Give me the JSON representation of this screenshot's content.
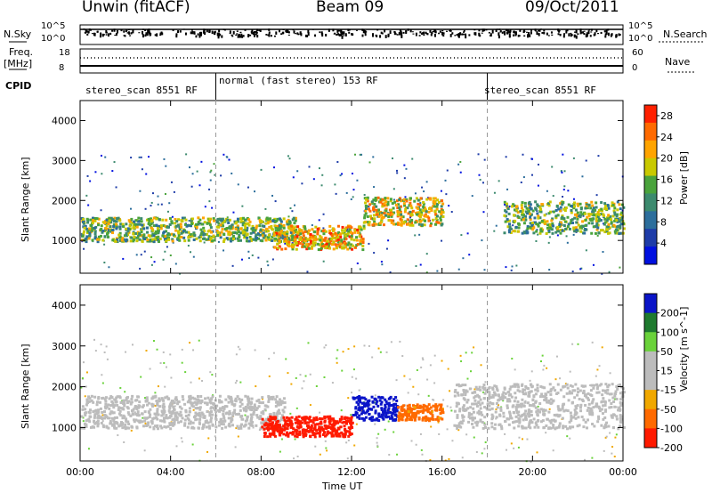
{
  "header": {
    "station": "Unwin (fitACF)",
    "beam": "Beam 09",
    "date": "09/Oct/2011"
  },
  "side_labels": {
    "nsky": "N.Sky",
    "freq_line1": "Freq.",
    "freq_line2": "[MHz]",
    "cpid": "CPID",
    "nsearch": "N.Search",
    "nave": "Nave"
  },
  "noise_panel": {
    "left_ticks": [
      "10^5",
      "10^0"
    ],
    "right_ticks": [
      "10^5",
      "10^0"
    ]
  },
  "freq_panel": {
    "left_ticks": [
      "18",
      "8"
    ],
    "right_ticks": [
      "60",
      "0"
    ]
  },
  "cpid_segments": [
    {
      "label": "stereo_scan 8551 RF"
    },
    {
      "label": "normal (fast stereo) 153 RF"
    },
    {
      "label": "stereo_scan 8551 RF"
    }
  ],
  "colors": {
    "power_scale": [
      "#0010e0",
      "#1e3ca8",
      "#2c6e9c",
      "#3c8a6e",
      "#4aa33c",
      "#c9c900",
      "#ffa400",
      "#ff6a00",
      "#ff2000"
    ],
    "velocity_scale": [
      "#0a14c8",
      "#1e7a2e",
      "#6ad23a",
      "#bcbcbc",
      "#bcbcbc",
      "#f0a800",
      "#ff6a00",
      "#ff1a00"
    ]
  },
  "chart_data": [
    {
      "type": "heatmap",
      "title": "Power",
      "xlabel": "Time UT",
      "ylabel": "Slant Range [km]",
      "x_ticks": [
        "00:00",
        "04:00",
        "08:00",
        "12:00",
        "16:00",
        "20:00",
        "00:00"
      ],
      "y_ticks": [
        "1000",
        "2000",
        "3000",
        "4000"
      ],
      "xlim_hours": [
        0,
        24
      ],
      "ylim_km": [
        180,
        4500
      ],
      "colorbar_label": "Power [dB]",
      "colorbar_ticks": [
        "4",
        "8",
        "12",
        "16",
        "20",
        "24",
        "28"
      ],
      "colorbar_range": [
        0,
        30
      ],
      "bands": [
        {
          "time_hours": [
            0,
            9.5
          ],
          "range_km": [
            1000,
            1600
          ],
          "power_db": 22
        },
        {
          "time_hours": [
            8.5,
            12.5
          ],
          "range_km": [
            800,
            1400
          ],
          "power_db": 28
        },
        {
          "time_hours": [
            12.5,
            16
          ],
          "range_km": [
            1400,
            2100
          ],
          "power_db": 26
        },
        {
          "time_hours": [
            18.7,
            24
          ],
          "range_km": [
            1200,
            2000
          ],
          "power_db": 22
        }
      ]
    },
    {
      "type": "heatmap",
      "title": "Velocity",
      "xlabel": "Time UT",
      "ylabel": "Slant Range [km]",
      "x_ticks": [
        "00:00",
        "04:00",
        "08:00",
        "12:00",
        "16:00",
        "20:00",
        "00:00"
      ],
      "y_ticks": [
        "1000",
        "2000",
        "3000",
        "4000"
      ],
      "xlim_hours": [
        0,
        24
      ],
      "ylim_km": [
        180,
        4500
      ],
      "colorbar_label": "Velocity [m s^-1]",
      "colorbar_ticks": [
        "200",
        "100",
        "50",
        "15",
        "-15",
        "-50",
        "-100",
        "-200"
      ],
      "colorbar_range": [
        -250,
        250
      ],
      "bands": [
        {
          "time_hours": [
            0,
            9
          ],
          "range_km": [
            1000,
            1800
          ],
          "velocity": 0
        },
        {
          "time_hours": [
            8,
            12
          ],
          "range_km": [
            800,
            1300
          ],
          "velocity": -200
        },
        {
          "time_hours": [
            12,
            14
          ],
          "range_km": [
            1200,
            1800
          ],
          "velocity": 200
        },
        {
          "time_hours": [
            14,
            16
          ],
          "range_km": [
            1200,
            1600
          ],
          "velocity": -100
        },
        {
          "time_hours": [
            16.5,
            24
          ],
          "range_km": [
            1000,
            2100
          ],
          "velocity": 0
        }
      ]
    }
  ]
}
